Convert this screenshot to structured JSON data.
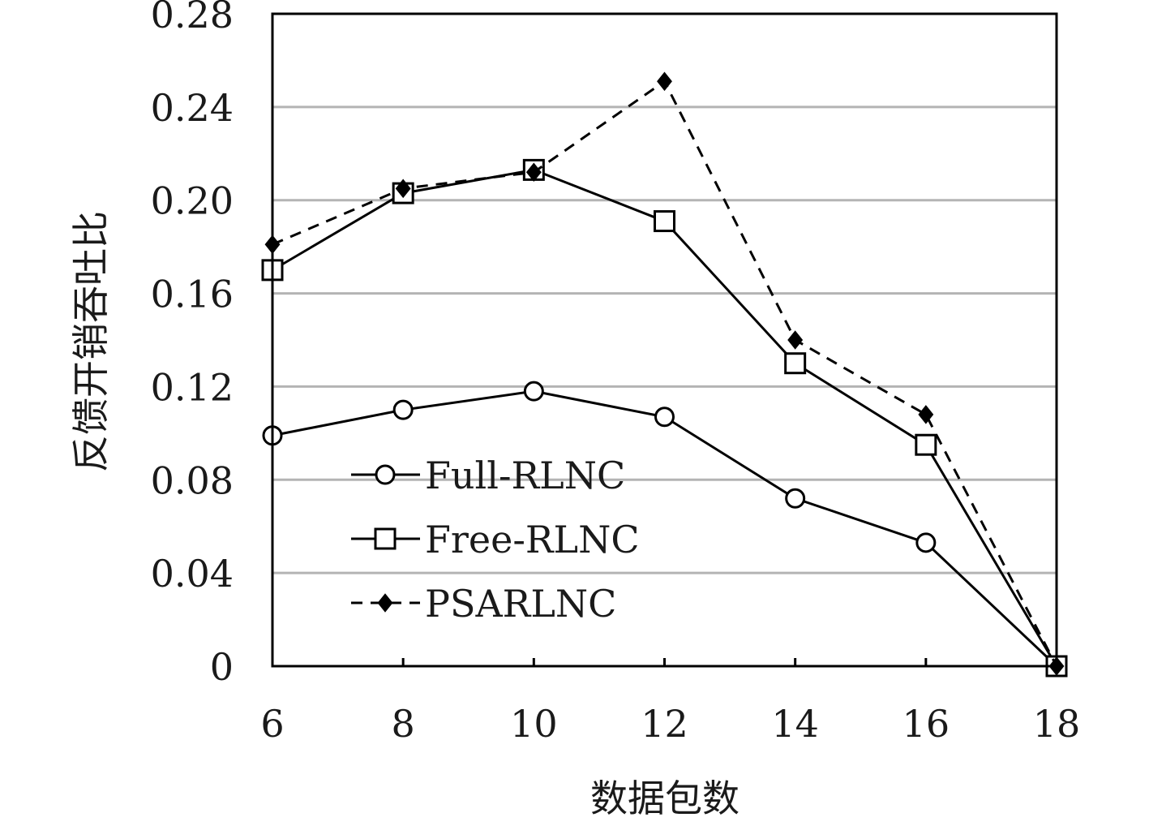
{
  "chart_data": {
    "type": "line",
    "title": "",
    "xlabel": "数据包数",
    "ylabel": "反馈开销吞吐比",
    "x": [
      6,
      8,
      10,
      12,
      14,
      16,
      18
    ],
    "x_tick_labels": [
      "6",
      "8",
      "10",
      "12",
      "14",
      "16",
      "18"
    ],
    "y_tick_values": [
      0,
      0.04,
      0.08,
      0.12,
      0.16,
      0.2,
      0.24,
      0.28
    ],
    "y_tick_labels": [
      "0",
      "0.04",
      "0.08",
      "0.12",
      "0.16",
      "0.20",
      "0.24",
      "0.28"
    ],
    "xlim": [
      6,
      18
    ],
    "ylim": [
      0,
      0.28
    ],
    "grid": "horizontal",
    "legend_position": "bottom-left",
    "series": [
      {
        "name": "Full-RLNC",
        "marker": "open-circle",
        "line_style": "solid",
        "color": "#000000",
        "values": [
          0.099,
          0.11,
          0.118,
          0.107,
          0.072,
          0.053,
          0.0
        ]
      },
      {
        "name": "Free-RLNC",
        "marker": "open-square",
        "line_style": "solid",
        "color": "#000000",
        "values": [
          0.17,
          0.203,
          0.213,
          0.191,
          0.13,
          0.095,
          0.0
        ]
      },
      {
        "name": "PSARLNC",
        "marker": "filled-diamond",
        "line_style": "dashed",
        "color": "#000000",
        "values": [
          0.181,
          0.205,
          0.212,
          0.251,
          0.14,
          0.108,
          0.0
        ]
      }
    ]
  }
}
